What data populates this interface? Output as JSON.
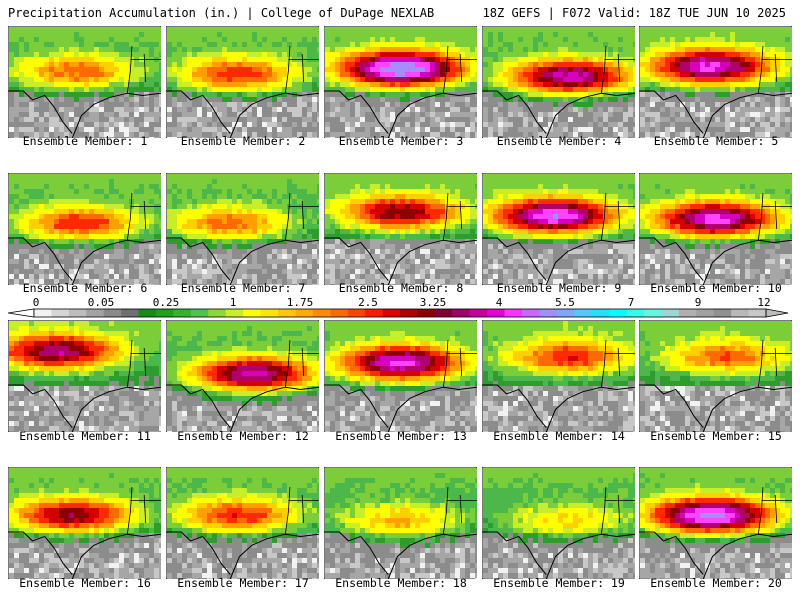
{
  "header": {
    "left_title": "Precipitation Accumulation (in.) | College of DuPage NEXLAB",
    "right_title": "18Z GEFS | F072 Valid: 18Z TUE JUN 10 2025"
  },
  "chart_data": {
    "type": "heatmap",
    "title": "Precipitation Accumulation (in.)",
    "source": "College of DuPage NEXLAB",
    "model": "18Z GEFS",
    "forecast_hour": "F072",
    "valid_time": "18Z TUE JUN 10 2025",
    "units": "in.",
    "layout": "4 rows x 5 columns of ensemble member maps",
    "colorbar": {
      "tick_labels": [
        "0",
        "0.05",
        "0.25",
        "1",
        "1.75",
        "2.5",
        "3.25",
        "4",
        "5.5",
        "7",
        "9",
        "12"
      ],
      "colors": [
        "#f2f2f2",
        "#d6d6d6",
        "#bdbdbd",
        "#a3a3a3",
        "#8a8a8a",
        "#6f6f6f",
        "#1a8a1a",
        "#1f9f1f",
        "#33b233",
        "#4cc44c",
        "#8ed73a",
        "#c8ee2a",
        "#ffff00",
        "#ffe600",
        "#ffc800",
        "#ffab00",
        "#ff8c00",
        "#ff6a00",
        "#ff4500",
        "#ff1a00",
        "#e00000",
        "#b30000",
        "#8b0000",
        "#800033",
        "#a0006e",
        "#c8009a",
        "#e600d2",
        "#ff33ff",
        "#cc66ff",
        "#9f8fff",
        "#7fa7ff",
        "#55c8ff",
        "#22e0ff",
        "#00ffff",
        "#33ffe8",
        "#66f5e0",
        "#9ad8d8",
        "#b0b0b0",
        "#a0a0a0",
        "#909090",
        "#b8b8b8",
        "#c8c8c8"
      ]
    },
    "panels": [
      {
        "label": "Ensemble Member: 1",
        "peak_in": 2.0
      },
      {
        "label": "Ensemble Member: 2",
        "peak_in": 2.5
      },
      {
        "label": "Ensemble Member: 3",
        "peak_in": 6.5
      },
      {
        "label": "Ensemble Member: 4",
        "peak_in": 4.5
      },
      {
        "label": "Ensemble Member: 5",
        "peak_in": 5.0
      },
      {
        "label": "Ensemble Member: 6",
        "peak_in": 2.5
      },
      {
        "label": "Ensemble Member: 7",
        "peak_in": 2.0
      },
      {
        "label": "Ensemble Member: 8",
        "peak_in": 3.5
      },
      {
        "label": "Ensemble Member: 9",
        "peak_in": 5.5
      },
      {
        "label": "Ensemble Member: 10",
        "peak_in": 5.0
      },
      {
        "label": "Ensemble Member: 11",
        "peak_in": 4.0
      },
      {
        "label": "Ensemble Member: 12",
        "peak_in": 4.5
      },
      {
        "label": "Ensemble Member: 13",
        "peak_in": 5.0
      },
      {
        "label": "Ensemble Member: 14",
        "peak_in": 2.5
      },
      {
        "label": "Ensemble Member: 15",
        "peak_in": 2.0
      },
      {
        "label": "Ensemble Member: 16",
        "peak_in": 3.5
      },
      {
        "label": "Ensemble Member: 17",
        "peak_in": 2.5
      },
      {
        "label": "Ensemble Member: 18",
        "peak_in": 1.5
      },
      {
        "label": "Ensemble Member: 19",
        "peak_in": 1.2
      },
      {
        "label": "Ensemble Member: 20",
        "peak_in": 6.0
      }
    ]
  }
}
